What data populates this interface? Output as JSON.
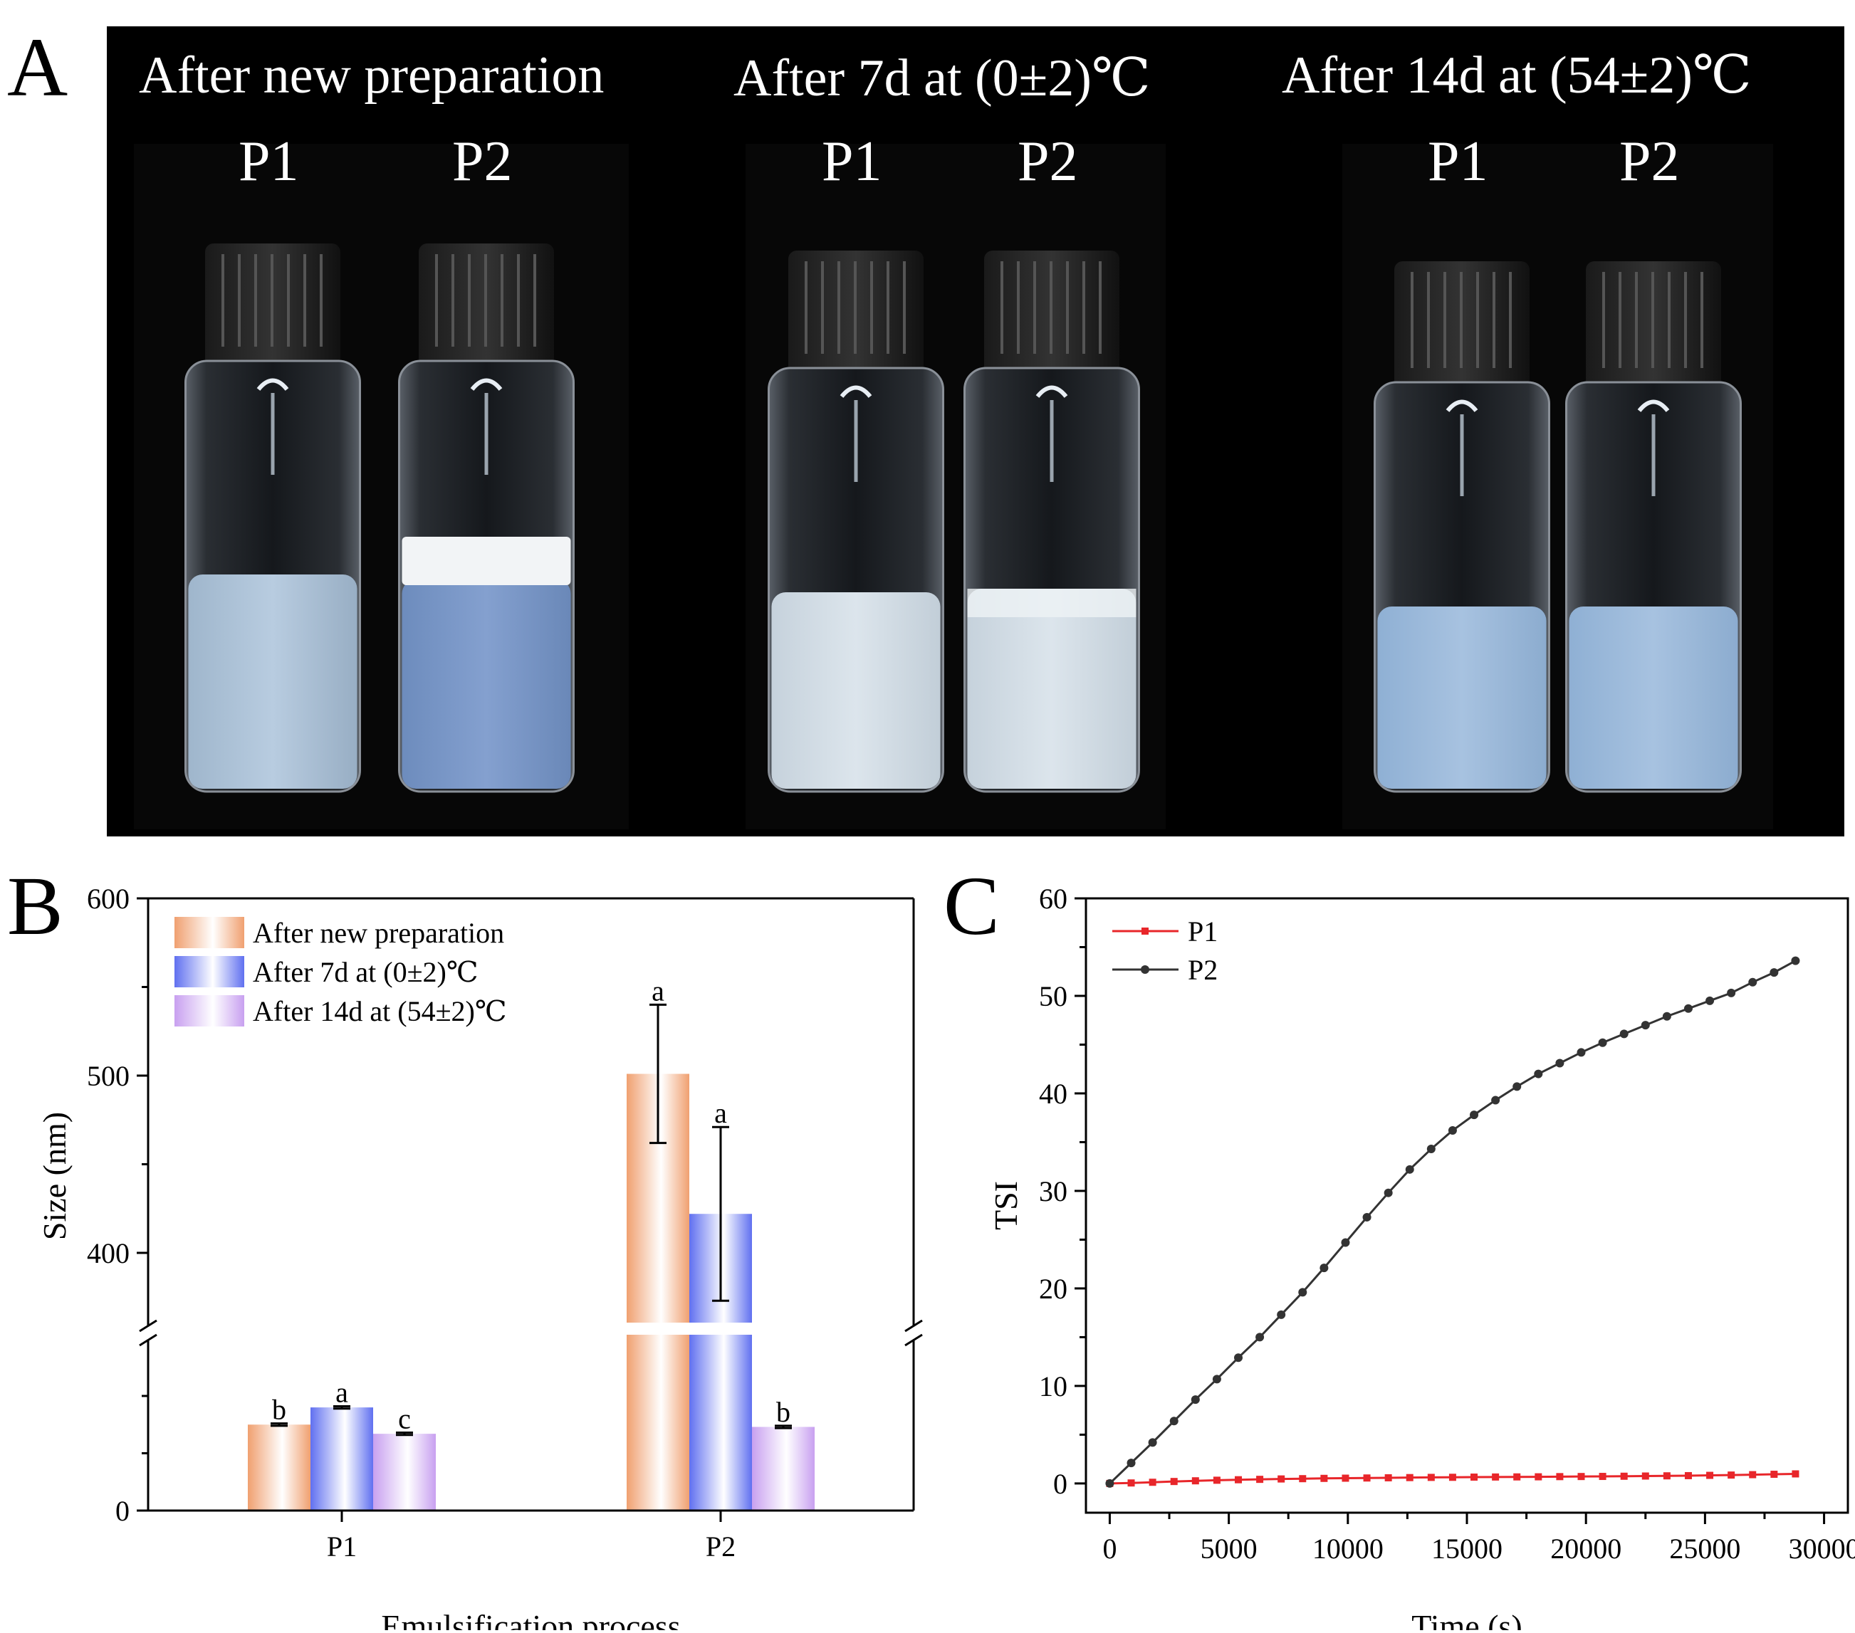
{
  "panels": {
    "a": {
      "letter": "A",
      "groups": [
        {
          "heading": "After new preparation",
          "labels": [
            "P1",
            "P2"
          ]
        },
        {
          "heading": "After 7d  at (0±2)℃",
          "labels": [
            "P1",
            "P2"
          ]
        },
        {
          "heading": "After 14d  at (54±2)℃",
          "labels": [
            "P1",
            "P2"
          ]
        }
      ]
    },
    "b": {
      "letter": "B"
    },
    "c": {
      "letter": "C"
    }
  },
  "colors": {
    "new_prep": "#f0a070",
    "cold": "#6070f0",
    "hot": "#c8a0f0",
    "p1_line": "#e8262a",
    "p2_line": "#333333"
  },
  "chart_data": [
    {
      "type": "bar",
      "xlabel": "Emulsification process",
      "ylabel": "Size (nm)",
      "categories": [
        "P1",
        "P2"
      ],
      "axis_break": true,
      "yticks_upper": [
        400,
        500,
        600
      ],
      "yticks_lower": [
        0
      ],
      "ylim_upper": [
        360,
        600
      ],
      "legend_position": "top-left",
      "series": [
        {
          "name": "After new preparation",
          "values": [
            75,
            501
          ],
          "errors": [
            1,
            39
          ],
          "letters": [
            "b",
            "a"
          ]
        },
        {
          "name": "After 7d at (0±2)℃",
          "values": [
            90,
            422
          ],
          "errors": [
            1,
            49
          ],
          "letters": [
            "a",
            "a"
          ]
        },
        {
          "name": "After 14d at (54±2)℃",
          "values": [
            67,
            73
          ],
          "errors": [
            1,
            1
          ],
          "letters": [
            "c",
            "b"
          ]
        }
      ]
    },
    {
      "type": "line",
      "xlabel": "Time (s)",
      "ylabel": "TSI",
      "xlim": [
        -1000,
        31000
      ],
      "ylim": [
        -3,
        60
      ],
      "xticks": [
        0,
        5000,
        10000,
        15000,
        20000,
        25000,
        30000
      ],
      "yticks": [
        0,
        10,
        20,
        30,
        40,
        50,
        60
      ],
      "legend_position": "top-left",
      "series": [
        {
          "name": "P1",
          "x": [
            0,
            900,
            1800,
            2700,
            3600,
            4500,
            5400,
            6300,
            7200,
            8100,
            9000,
            9900,
            10800,
            11700,
            12600,
            13500,
            14400,
            15300,
            16200,
            17100,
            18000,
            18900,
            19800,
            20700,
            21600,
            22500,
            23400,
            24300,
            25200,
            26100,
            27000,
            27900,
            28800
          ],
          "y": [
            0,
            0.05,
            0.12,
            0.2,
            0.27,
            0.33,
            0.38,
            0.42,
            0.46,
            0.49,
            0.52,
            0.54,
            0.56,
            0.58,
            0.6,
            0.62,
            0.63,
            0.65,
            0.66,
            0.67,
            0.68,
            0.7,
            0.71,
            0.72,
            0.74,
            0.76,
            0.78,
            0.8,
            0.83,
            0.86,
            0.9,
            0.94,
            0.98
          ]
        },
        {
          "name": "P2",
          "x": [
            0,
            900,
            1800,
            2700,
            3600,
            4500,
            5400,
            6300,
            7200,
            8100,
            9000,
            9900,
            10800,
            11700,
            12600,
            13500,
            14400,
            15300,
            16200,
            17100,
            18000,
            18900,
            19800,
            20700,
            21600,
            22500,
            23400,
            24300,
            25200,
            26100,
            27000,
            27900,
            28800
          ],
          "y": [
            0,
            2.1,
            4.2,
            6.4,
            8.6,
            10.7,
            12.9,
            15.0,
            17.3,
            19.6,
            22.1,
            24.7,
            27.3,
            29.8,
            32.2,
            34.3,
            36.2,
            37.8,
            39.3,
            40.7,
            42.0,
            43.1,
            44.2,
            45.2,
            46.1,
            47.0,
            47.9,
            48.7,
            49.5,
            50.3,
            51.4,
            52.4,
            53.6
          ]
        }
      ]
    }
  ]
}
